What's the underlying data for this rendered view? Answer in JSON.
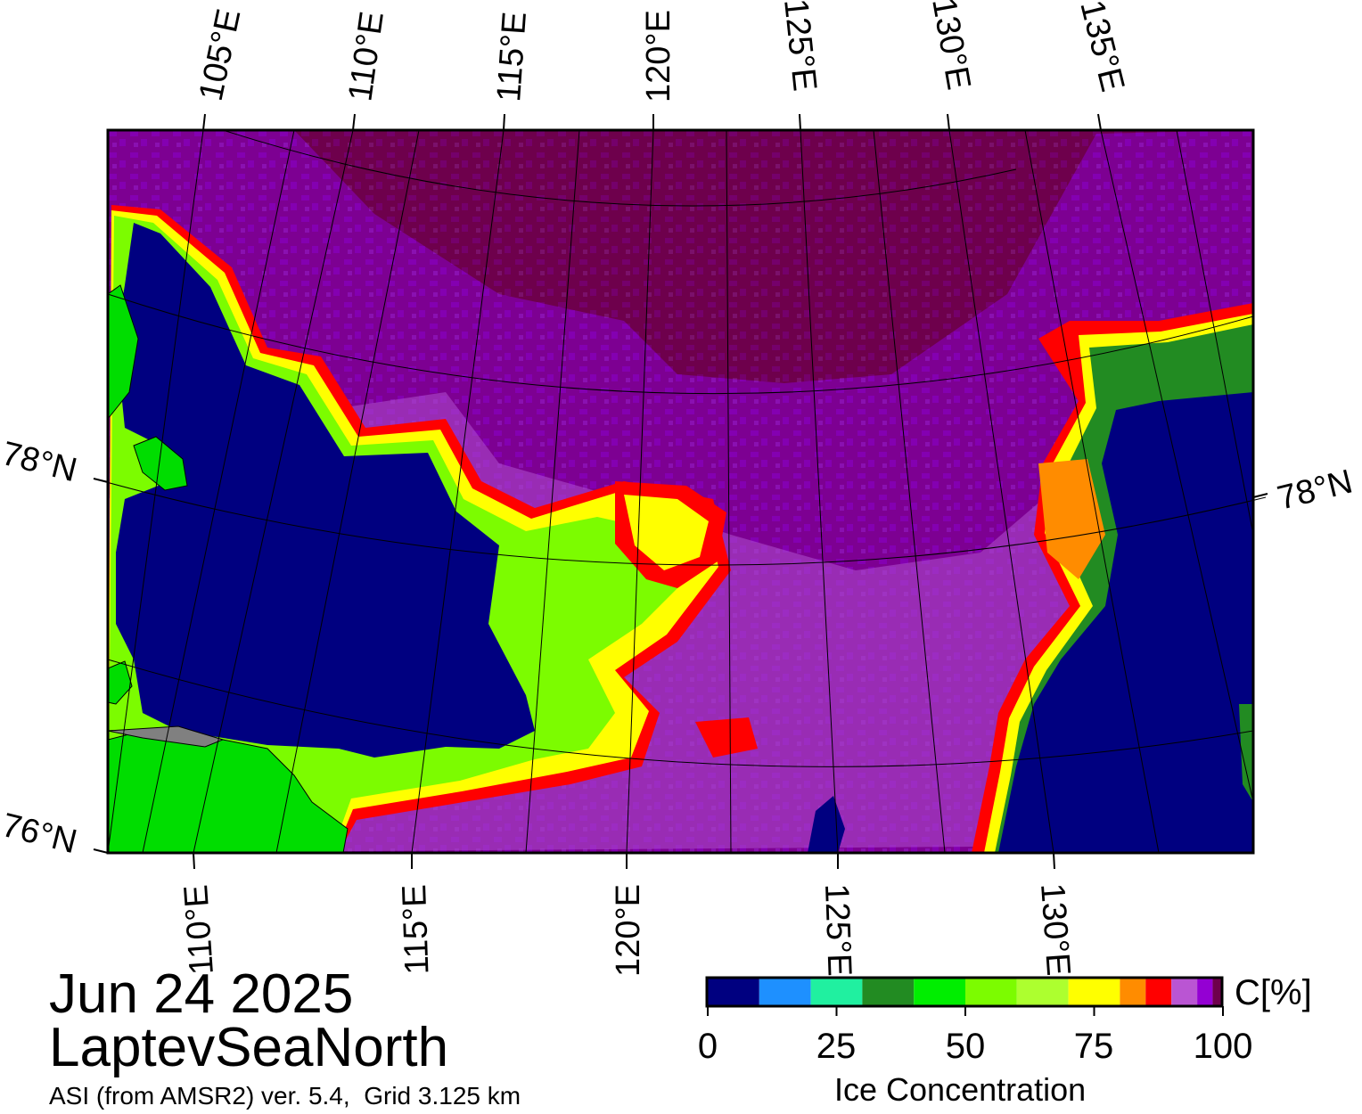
{
  "map": {
    "date": "Jun 24 2025",
    "region": "LaptevSeaNorth",
    "source": "ASI (from AMSR2) ver. 5.4,  Grid 3.125 km",
    "top_lon_labels": [
      "105°E",
      "110°E",
      "115°E",
      "120°E",
      "125°E",
      "130°E",
      "135°E"
    ],
    "bottom_lon_labels": [
      "110°E",
      "115°E",
      "120°E",
      "125°E",
      "130°E"
    ],
    "lat_labels": [
      "78°N",
      "76°N"
    ],
    "right_lat_labels": [
      "78°N"
    ],
    "colors": {
      "open_water": "#000080",
      "land": "#00dd00",
      "land_border": "#808080",
      "ice_high": "#6e004c",
      "ice_mid": "#8a00c8"
    }
  },
  "colorbar": {
    "title": "Ice Concentration",
    "unit": "C[%]",
    "tick_labels": [
      "0",
      "25",
      "50",
      "75",
      "100"
    ],
    "classes": [
      {
        "from": 0,
        "to": 10,
        "color": "#000080"
      },
      {
        "from": 10,
        "to": 20,
        "color": "#1e90ff"
      },
      {
        "from": 20,
        "to": 30,
        "color": "#20f0a0"
      },
      {
        "from": 30,
        "to": 40,
        "color": "#228b22"
      },
      {
        "from": 40,
        "to": 50,
        "color": "#00ee00"
      },
      {
        "from": 50,
        "to": 60,
        "color": "#7cfc00"
      },
      {
        "from": 60,
        "to": 70,
        "color": "#adff2f"
      },
      {
        "from": 70,
        "to": 80,
        "color": "#ffff00"
      },
      {
        "from": 80,
        "to": 85,
        "color": "#ff8c00"
      },
      {
        "from": 85,
        "to": 90,
        "color": "#ff0000"
      },
      {
        "from": 90,
        "to": 95,
        "color": "#ba55d3"
      },
      {
        "from": 95,
        "to": 98,
        "color": "#9400d3"
      },
      {
        "from": 98,
        "to": 100,
        "color": "#6e004c"
      }
    ]
  }
}
